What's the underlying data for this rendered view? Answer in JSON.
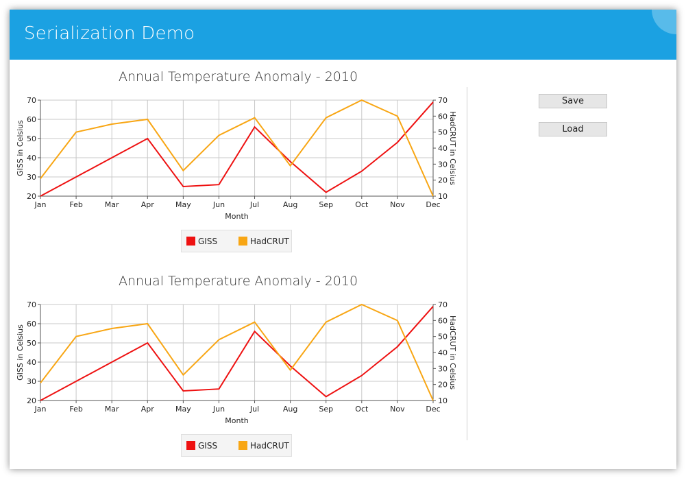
{
  "window": {
    "title": "Serialization Demo",
    "close_label": "×"
  },
  "buttons": {
    "save_label": "Save",
    "load_label": "Load"
  },
  "colors": {
    "titlebar": "#1ba1e2",
    "giss": "#ee1111",
    "hadcrut": "#f8a614"
  },
  "chart_data": [
    {
      "type": "line",
      "title": "Annual Temperature Anomaly - 2010",
      "xlabel": "Month",
      "ylabel": "GISS in Celsius",
      "y2label": "HadCRUT in Celsius",
      "categories": [
        "Jan",
        "Feb",
        "Mar",
        "Apr",
        "May",
        "Jun",
        "Jul",
        "Aug",
        "Sep",
        "Oct",
        "Nov",
        "Dec"
      ],
      "ylim": [
        20,
        70
      ],
      "y2lim": [
        10,
        70
      ],
      "yticks": [
        20,
        30,
        40,
        50,
        60,
        70
      ],
      "y2ticks": [
        10,
        20,
        30,
        40,
        50,
        60,
        70
      ],
      "grid": true,
      "legend_position": "bottom",
      "series": [
        {
          "name": "GISS",
          "axis": "left",
          "color": "#ee1111",
          "values": [
            20,
            30,
            40,
            50,
            25,
            26,
            56,
            38,
            22,
            33,
            48,
            69
          ]
        },
        {
          "name": "HadCRUT",
          "axis": "right",
          "color": "#f8a614",
          "values": [
            21,
            50,
            55,
            58,
            26,
            48,
            59,
            29,
            59,
            70,
            60,
            10
          ]
        }
      ]
    },
    {
      "type": "line",
      "title": "Annual Temperature Anomaly - 2010",
      "xlabel": "Month",
      "ylabel": "GISS in Celsius",
      "y2label": "HadCRUT in Celsius",
      "categories": [
        "Jan",
        "Feb",
        "Mar",
        "Apr",
        "May",
        "Jun",
        "Jul",
        "Aug",
        "Sep",
        "Oct",
        "Nov",
        "Dec"
      ],
      "ylim": [
        20,
        70
      ],
      "y2lim": [
        10,
        70
      ],
      "yticks": [
        20,
        30,
        40,
        50,
        60,
        70
      ],
      "y2ticks": [
        10,
        20,
        30,
        40,
        50,
        60,
        70
      ],
      "grid": true,
      "legend_position": "bottom",
      "series": [
        {
          "name": "GISS",
          "axis": "left",
          "color": "#ee1111",
          "values": [
            20,
            30,
            40,
            50,
            25,
            26,
            56,
            38,
            22,
            33,
            48,
            69
          ]
        },
        {
          "name": "HadCRUT",
          "axis": "right",
          "color": "#f8a614",
          "values": [
            21,
            50,
            55,
            58,
            26,
            48,
            59,
            29,
            59,
            70,
            60,
            10
          ]
        }
      ]
    }
  ]
}
